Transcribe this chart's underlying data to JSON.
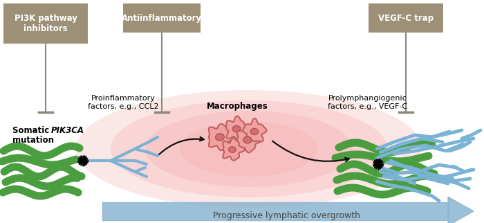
{
  "bg_color": "#ffffff",
  "box_color": "#9e9077",
  "box_text_color": "#ffffff",
  "box1_text": "PI3K pathway\ninhibitors",
  "box2_text": "Antiinflammatory",
  "box3_text": "VEGF-C trap",
  "label_proinflam": "Proinflammatory\nfactors, e.g., CCL2",
  "label_macrophages": "Macrophages",
  "label_prolymph": "Prolymphangiogenic\nfactors, e.g., VEGF-C",
  "label_progressive": "Progressive lymphatic overgrowth",
  "green_color": "#4a9e3f",
  "blue_vessel_color": "#7ab3d4",
  "blue_arrow_color": "#8ab5d0",
  "macrophage_fill": "#f0a0a0",
  "macrophage_edge": "#c06060",
  "macrophage_nucleus": "#d07070",
  "macrophage_nucleus_edge": "#b05050",
  "inhibit_line_color": "#888877",
  "black_arrow_color": "#111111"
}
